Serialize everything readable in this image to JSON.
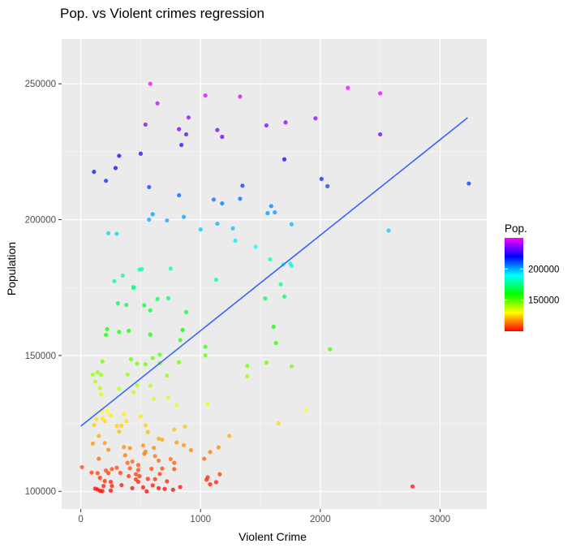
{
  "chart_data": {
    "type": "scatter",
    "title": "Pop. vs Violent crimes regression",
    "xlabel": "Violent Crime",
    "ylabel": "Population",
    "xlim": [
      -160,
      3390
    ],
    "ylim": [
      93500,
      266500
    ],
    "xticks": [
      0,
      1000,
      2000,
      3000
    ],
    "yticks": [
      100000,
      150000,
      200000,
      250000
    ],
    "ytick_labels": [
      "100000",
      "150000",
      "200000",
      "250000"
    ],
    "xtick_labels": [
      "0",
      "1000",
      "2000",
      "3000"
    ],
    "panel_background": "#ebebeb",
    "gridlines": true,
    "regression": {
      "x": [
        0,
        3230
      ],
      "y": [
        124000,
        237500
      ],
      "color": "#3366ff"
    },
    "legend": {
      "title": "Pop.",
      "position": "right",
      "min": 100000,
      "max": 250000,
      "ticks": [
        150000,
        200000
      ],
      "tick_labels": [
        "150000",
        "200000"
      ],
      "palette": [
        "#ff0000",
        "#ffff00",
        "#00ff00",
        "#00ffff",
        "#0000ff",
        "#ff00ff"
      ]
    },
    "points": [
      [
        580,
        250000
      ],
      [
        2230,
        248500
      ],
      [
        2500,
        246500
      ],
      [
        1040,
        245700
      ],
      [
        1330,
        245300
      ],
      [
        640,
        242800
      ],
      [
        900,
        237600
      ],
      [
        1960,
        237300
      ],
      [
        540,
        235000
      ],
      [
        1710,
        235800
      ],
      [
        1550,
        234700
      ],
      [
        820,
        233300
      ],
      [
        1140,
        233000
      ],
      [
        880,
        231400
      ],
      [
        2500,
        231400
      ],
      [
        1180,
        230500
      ],
      [
        840,
        227500
      ],
      [
        320,
        223500
      ],
      [
        500,
        224300
      ],
      [
        1700,
        222200
      ],
      [
        290,
        219000
      ],
      [
        110,
        217600
      ],
      [
        2010,
        215000
      ],
      [
        210,
        214300
      ],
      [
        2060,
        212300
      ],
      [
        3240,
        213300
      ],
      [
        1350,
        212500
      ],
      [
        570,
        212000
      ],
      [
        820,
        209000
      ],
      [
        1110,
        207400
      ],
      [
        1330,
        207700
      ],
      [
        1180,
        206000
      ],
      [
        1590,
        205000
      ],
      [
        1270,
        196800
      ],
      [
        1560,
        202400
      ],
      [
        1620,
        202700
      ],
      [
        600,
        202000
      ],
      [
        720,
        199700
      ],
      [
        570,
        200000
      ],
      [
        860,
        201000
      ],
      [
        1140,
        198500
      ],
      [
        1760,
        198300
      ],
      [
        1000,
        196400
      ],
      [
        230,
        195000
      ],
      [
        300,
        194800
      ],
      [
        1290,
        192300
      ],
      [
        2570,
        196000
      ],
      [
        1460,
        190000
      ],
      [
        1580,
        185400
      ],
      [
        1690,
        183500
      ],
      [
        1750,
        183800
      ],
      [
        1760,
        183000
      ],
      [
        490,
        181600
      ],
      [
        510,
        181800
      ],
      [
        750,
        182000
      ],
      [
        1130,
        177900
      ],
      [
        440,
        174900
      ],
      [
        280,
        177400
      ],
      [
        350,
        179400
      ],
      [
        1670,
        176200
      ],
      [
        1540,
        171000
      ],
      [
        1700,
        171700
      ],
      [
        440,
        175200
      ],
      [
        730,
        171100
      ],
      [
        640,
        170800
      ],
      [
        310,
        169200
      ],
      [
        380,
        168600
      ],
      [
        530,
        168500
      ],
      [
        580,
        166600
      ],
      [
        880,
        166000
      ],
      [
        1610,
        160600
      ],
      [
        850,
        159400
      ],
      [
        220,
        159700
      ],
      [
        320,
        158700
      ],
      [
        400,
        159100
      ],
      [
        210,
        157600
      ],
      [
        580,
        157700
      ],
      [
        830,
        155700
      ],
      [
        1040,
        153200
      ],
      [
        1630,
        154600
      ],
      [
        2080,
        152300
      ],
      [
        1040,
        150000
      ],
      [
        660,
        150300
      ],
      [
        600,
        149100
      ],
      [
        420,
        148600
      ],
      [
        540,
        146800
      ],
      [
        180,
        147800
      ],
      [
        660,
        147200
      ],
      [
        820,
        147500
      ],
      [
        1550,
        147400
      ],
      [
        1390,
        146200
      ],
      [
        1760,
        146000
      ],
      [
        470,
        147000
      ],
      [
        100,
        143000
      ],
      [
        120,
        140400
      ],
      [
        1390,
        142300
      ],
      [
        140,
        143800
      ],
      [
        720,
        142600
      ],
      [
        170,
        142900
      ],
      [
        390,
        143000
      ],
      [
        160,
        138000
      ],
      [
        470,
        139000
      ],
      [
        580,
        138900
      ],
      [
        320,
        137800
      ],
      [
        440,
        136500
      ],
      [
        170,
        135600
      ],
      [
        610,
        134000
      ],
      [
        730,
        134500
      ],
      [
        1060,
        132000
      ],
      [
        800,
        131700
      ],
      [
        1880,
        130000
      ],
      [
        220,
        129600
      ],
      [
        170,
        129400
      ],
      [
        250,
        128000
      ],
      [
        360,
        128400
      ],
      [
        500,
        127600
      ],
      [
        380,
        125800
      ],
      [
        110,
        124400
      ],
      [
        130,
        126600
      ],
      [
        180,
        126800
      ],
      [
        200,
        125800
      ],
      [
        300,
        124100
      ],
      [
        320,
        122000
      ],
      [
        340,
        124200
      ],
      [
        540,
        124300
      ],
      [
        560,
        121800
      ],
      [
        780,
        122800
      ],
      [
        870,
        123800
      ],
      [
        1650,
        125100
      ],
      [
        1240,
        120400
      ],
      [
        100,
        117600
      ],
      [
        650,
        119400
      ],
      [
        680,
        119000
      ],
      [
        150,
        120400
      ],
      [
        200,
        117800
      ],
      [
        230,
        115300
      ],
      [
        360,
        116300
      ],
      [
        410,
        115900
      ],
      [
        520,
        116900
      ],
      [
        610,
        116000
      ],
      [
        800,
        118000
      ],
      [
        860,
        117000
      ],
      [
        920,
        115200
      ],
      [
        1150,
        116200
      ],
      [
        1080,
        114500
      ],
      [
        530,
        113800
      ],
      [
        540,
        114600
      ],
      [
        1030,
        112000
      ],
      [
        620,
        113000
      ],
      [
        370,
        113300
      ],
      [
        150,
        112000
      ],
      [
        390,
        110500
      ],
      [
        430,
        111000
      ],
      [
        480,
        109700
      ],
      [
        650,
        111300
      ],
      [
        750,
        111900
      ],
      [
        780,
        108200
      ],
      [
        780,
        110500
      ],
      [
        680,
        108400
      ],
      [
        590,
        108300
      ],
      [
        480,
        107900
      ],
      [
        330,
        106800
      ],
      [
        300,
        108700
      ],
      [
        260,
        108200
      ],
      [
        210,
        107700
      ],
      [
        230,
        106700
      ],
      [
        140,
        106700
      ],
      [
        90,
        106900
      ],
      [
        10,
        108900
      ],
      [
        410,
        108500
      ],
      [
        460,
        106300
      ],
      [
        490,
        105600
      ],
      [
        560,
        104600
      ],
      [
        620,
        104500
      ],
      [
        660,
        106400
      ],
      [
        720,
        103700
      ],
      [
        1050,
        104300
      ],
      [
        1060,
        105200
      ],
      [
        1080,
        102600
      ],
      [
        1130,
        103400
      ],
      [
        1160,
        106300
      ],
      [
        160,
        105000
      ],
      [
        200,
        103800
      ],
      [
        250,
        103500
      ],
      [
        190,
        102000
      ],
      [
        260,
        102000
      ],
      [
        340,
        102300
      ],
      [
        400,
        105600
      ],
      [
        430,
        101200
      ],
      [
        460,
        104400
      ],
      [
        480,
        103500
      ],
      [
        520,
        101500
      ],
      [
        550,
        100000
      ],
      [
        600,
        102200
      ],
      [
        650,
        101200
      ],
      [
        700,
        100900
      ],
      [
        770,
        100600
      ],
      [
        830,
        101600
      ],
      [
        120,
        101000
      ],
      [
        140,
        100700
      ],
      [
        160,
        100200
      ],
      [
        180,
        100100
      ],
      [
        250,
        100300
      ],
      [
        2770,
        101800
      ]
    ]
  }
}
